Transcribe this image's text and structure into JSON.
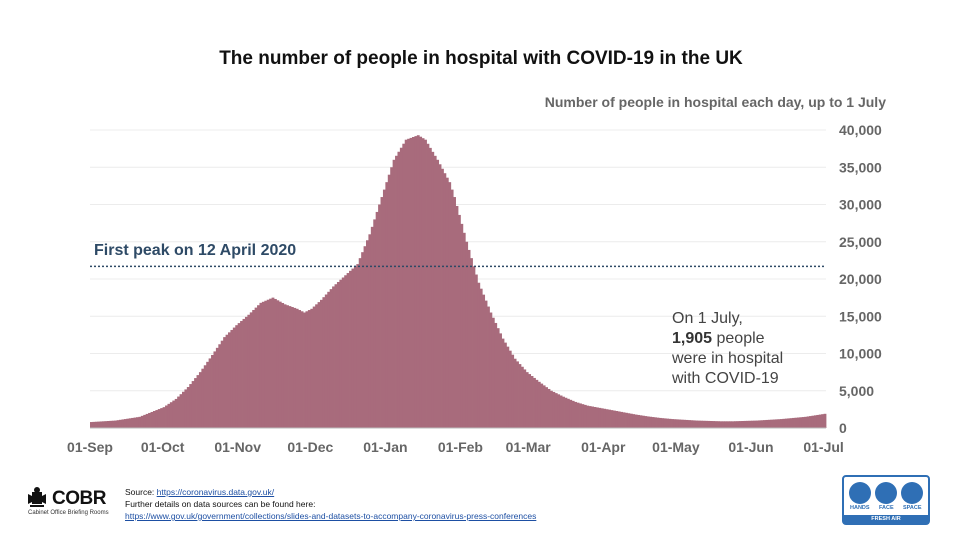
{
  "chart_data": {
    "type": "bar",
    "title": "The number of people in hospital with COVID-19 in the UK",
    "subtitle": "Number of people in hospital each day, up to 1 July",
    "ylim": [
      0,
      40000
    ],
    "y_ticks": [
      "0",
      "5,000",
      "10,000",
      "15,000",
      "20,000",
      "25,000",
      "30,000",
      "35,000",
      "40,000"
    ],
    "y_tick_values": [
      0,
      5000,
      10000,
      15000,
      20000,
      25000,
      30000,
      35000,
      40000
    ],
    "x_tick_labels": [
      "01-Sep",
      "01-Oct",
      "01-Nov",
      "01-Dec",
      "01-Jan",
      "01-Feb",
      "01-Mar",
      "01-Apr",
      "01-May",
      "01-Jun",
      "01-Jul"
    ],
    "x_tick_days": [
      0,
      30,
      61,
      91,
      122,
      153,
      181,
      212,
      242,
      273,
      303
    ],
    "total_days": 304,
    "bar_color": "#a86b7c",
    "reference_line": {
      "value": 21700,
      "label": "First peak on 12 April 2020",
      "color": "#2e4a66"
    },
    "series_anchors": {
      "name": "Patients in hospital",
      "days": [
        0,
        10,
        20,
        30,
        35,
        40,
        45,
        50,
        55,
        60,
        65,
        70,
        75,
        80,
        85,
        88,
        91,
        95,
        100,
        105,
        110,
        115,
        120,
        125,
        130,
        135,
        138,
        140,
        143,
        148,
        150,
        155,
        160,
        165,
        170,
        175,
        180,
        185,
        190,
        195,
        200,
        205,
        210,
        215,
        220,
        225,
        230,
        235,
        240,
        245,
        250,
        255,
        260,
        265,
        270,
        275,
        280,
        285,
        290,
        295,
        300,
        303
      ],
      "values": [
        800,
        1000,
        1500,
        2800,
        3900,
        5500,
        7500,
        9800,
        12200,
        13800,
        15200,
        16800,
        17500,
        16600,
        16000,
        15500,
        16000,
        17200,
        19000,
        20500,
        22000,
        26000,
        31000,
        36000,
        38700,
        39300,
        38700,
        37600,
        36000,
        33000,
        31000,
        25000,
        19500,
        15500,
        12000,
        9300,
        7500,
        6200,
        5000,
        4200,
        3500,
        3000,
        2700,
        2400,
        2100,
        1800,
        1550,
        1350,
        1200,
        1100,
        1000,
        950,
        900,
        900,
        950,
        1000,
        1100,
        1200,
        1350,
        1500,
        1750,
        1905
      ]
    }
  },
  "annotation": {
    "line1": "On 1 July,",
    "bold_value": "1,905",
    "line2_rest": " people",
    "line3": "were in hospital",
    "line4": "with COVID-19"
  },
  "footer": {
    "logo_text": "COBR",
    "logo_sub": "Cabinet Office Briefing Rooms",
    "source_prefix": "Source: ",
    "source_link": "https://coronavirus.data.gov.uk/",
    "details_text": "Further details on data sources can be found here:",
    "details_link": "https://www.gov.uk/government/collections/slides-and-datasets-to-accompany-coronavirus-press-conferences"
  },
  "badge": {
    "hands": "HANDS",
    "face": "FACE",
    "space": "SPACE",
    "fresh_air": "FRESH AIR"
  }
}
